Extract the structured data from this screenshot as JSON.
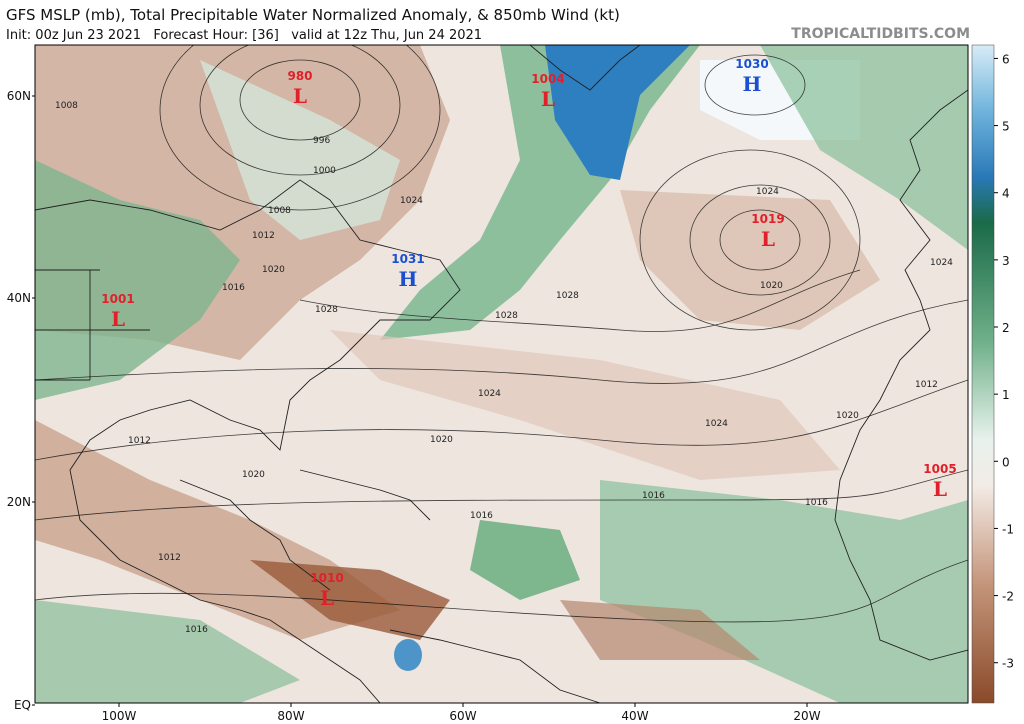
{
  "header": {
    "title": "GFS MSLP (mb), Total Precipitable Water Normalized Anomaly, & 850mb Wind (kt)",
    "subtitle": "Init: 00z Jun 23 2021   Forecast Hour: [36]   valid at 12z Thu, Jun 24 2021",
    "watermark": "TROPICALTIDBITS.COM"
  },
  "map": {
    "lat_labels": [
      "60N",
      "40N",
      "20N",
      "EQ"
    ],
    "lon_labels": [
      "100W",
      "80W",
      "60W",
      "40W",
      "20W"
    ],
    "centers": [
      {
        "kind": "L",
        "value": 980,
        "color": "#e0202a"
      },
      {
        "kind": "L",
        "value": 1004,
        "color": "#e0202a"
      },
      {
        "kind": "H",
        "value": 1030,
        "color": "#1a4fd0"
      },
      {
        "kind": "H",
        "value": 1031,
        "color": "#1a4fd0"
      },
      {
        "kind": "L",
        "value": 1019,
        "color": "#e0202a"
      },
      {
        "kind": "L",
        "value": 1001,
        "color": "#e0202a"
      },
      {
        "kind": "L",
        "value": 1010,
        "color": "#e0202a"
      },
      {
        "kind": "L",
        "value": 1005,
        "color": "#e0202a"
      }
    ],
    "isobar_labels": [
      "1008",
      "1000",
      "996",
      "1008",
      "1012",
      "1016",
      "1020",
      "1024",
      "1028",
      "1028",
      "1024",
      "1020",
      "1024",
      "1020",
      "1016",
      "1012",
      "1012",
      "1012",
      "1016",
      "1020",
      "1016",
      "1024",
      "1028",
      "1024",
      "1020",
      "1016"
    ]
  },
  "colorbar": {
    "lim": [
      -3.6,
      6.2
    ],
    "ticks": [
      6,
      5,
      4,
      3,
      2,
      1,
      0,
      -1,
      -2,
      -3
    ]
  }
}
